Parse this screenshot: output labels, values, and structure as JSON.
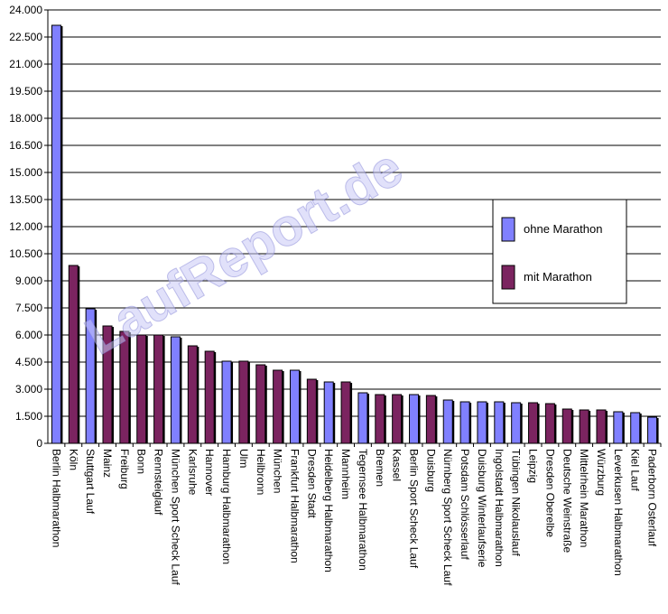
{
  "chart_data": {
    "type": "bar",
    "watermark": "LaufReport.de",
    "ylim": [
      0,
      24000
    ],
    "yticks": [
      0,
      1500,
      3000,
      4500,
      6000,
      7500,
      9000,
      10500,
      12000,
      13500,
      15000,
      16500,
      18000,
      19500,
      21000,
      22500,
      24000
    ],
    "ytick_labels": [
      "0",
      "1.500",
      "3.000",
      "4.500",
      "6.000",
      "7.500",
      "9.000",
      "10.500",
      "12.000",
      "13.500",
      "15.000",
      "16.500",
      "18.000",
      "19.500",
      "21.000",
      "22.500",
      "24.000"
    ],
    "grid": "horizontal",
    "legend_position": "right",
    "series": [
      {
        "name": "ohne Marathon",
        "color": "#8080ff"
      },
      {
        "name": "mit Marathon",
        "color": "#7b2460"
      }
    ],
    "categories": [
      "Berlin Halbmarathon",
      "Köln",
      "Stuttgart Lauf",
      "Mainz",
      "Freiburg",
      "Bonn",
      "Rennsteiglauf",
      "München Sport Scheck Lauf",
      "Karlsruhe",
      "Hannover",
      "Hamburg Halbmarathon",
      "Ulm",
      "Heilbronn",
      "München",
      "Frankfurt Halbmarathon",
      "Dresden Stadt",
      "Heidelberg Halbmarathon",
      "Mannheim",
      "Tegernsee Halbmarathon",
      "Bremen",
      "Kassel",
      "Berlin Sport Scheck Lauf",
      "Duisburg",
      "Nürnberg Sport Scheck Lauf",
      "Potsdam Schlösserlauf",
      "Duisburg Winterlaufserie",
      "Ingolstadt Halbmarathon",
      "Tübingen Nikolauslauf",
      "Leipzig",
      "Dresden Oberelbe",
      "Deutsche Weinstraße",
      "Mittelrhein Marathon",
      "Würzburg",
      "Leverkusen Halbmarathon",
      "Kiel Lauf",
      "Paderborn Osterlauf"
    ],
    "values": [
      23150,
      9850,
      7450,
      6500,
      6200,
      6000,
      6000,
      5900,
      5400,
      5100,
      4550,
      4550,
      4350,
      4050,
      4050,
      3550,
      3400,
      3400,
      2800,
      2700,
      2700,
      2700,
      2650,
      2400,
      2300,
      2300,
      2300,
      2250,
      2250,
      2200,
      1900,
      1850,
      1850,
      1750,
      1700,
      1450
    ],
    "series_index": [
      0,
      1,
      0,
      1,
      1,
      1,
      1,
      0,
      1,
      1,
      0,
      1,
      1,
      1,
      0,
      1,
      0,
      1,
      0,
      1,
      1,
      0,
      1,
      0,
      0,
      0,
      0,
      0,
      1,
      1,
      1,
      1,
      1,
      0,
      0,
      0
    ]
  }
}
